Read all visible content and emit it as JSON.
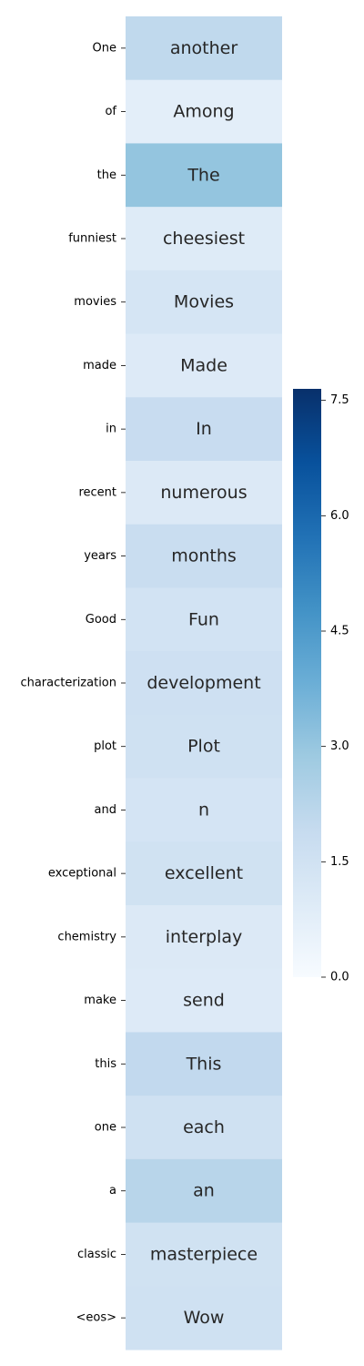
{
  "chart_data": {
    "type": "heatmap",
    "title": "",
    "xlabel": "",
    "ylabel": "",
    "row_labels": [
      "One",
      "of",
      "the",
      "funniest",
      "movies",
      "made",
      "in",
      "recent",
      "years",
      "Good",
      "characterization",
      "plot",
      "and",
      "exceptional",
      "chemistry",
      "make",
      "this",
      "one",
      "a",
      "classic",
      "<eos>"
    ],
    "cell_text": [
      "another",
      "Among",
      "The",
      "cheesiest",
      "Movies",
      "Made",
      "In",
      "numerous",
      "months",
      "Fun",
      "development",
      "Plot",
      "n",
      "excellent",
      "interplay",
      "send",
      "This",
      "each",
      "an",
      "masterpiece",
      "Wow"
    ],
    "values": [
      2.05,
      0.75,
      3.05,
      0.95,
      1.3,
      1.0,
      1.85,
      1.05,
      1.8,
      1.45,
      1.6,
      1.55,
      1.35,
      1.5,
      1.05,
      1.0,
      2.0,
      1.55,
      2.25,
      1.5,
      1.55
    ],
    "colormap": "Blues",
    "colorbar": {
      "min": 0.0,
      "max": 7.65,
      "ticks": [
        0.0,
        1.5,
        3.0,
        4.5,
        6.0,
        7.5
      ],
      "tick_labels": [
        "0.0",
        "1.5",
        "3.0",
        "4.5",
        "6.0",
        "7.5"
      ]
    }
  }
}
